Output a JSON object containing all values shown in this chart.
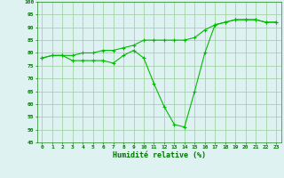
{
  "xlabel": "Humidité relative (%)",
  "ylabel": "",
  "x": [
    0,
    1,
    2,
    3,
    4,
    5,
    6,
    7,
    8,
    9,
    10,
    11,
    12,
    13,
    14,
    15,
    16,
    17,
    18,
    19,
    20,
    21,
    22,
    23
  ],
  "line1": [
    78,
    79,
    79,
    77,
    77,
    77,
    77,
    76,
    79,
    81,
    78,
    68,
    59,
    52,
    51,
    65,
    80,
    91,
    92,
    93,
    93,
    93,
    92,
    92
  ],
  "line2": [
    78,
    79,
    79,
    79,
    80,
    80,
    81,
    81,
    82,
    83,
    85,
    85,
    85,
    85,
    85,
    86,
    89,
    91,
    92,
    93,
    93,
    93,
    92,
    92
  ],
  "line_color": "#00bb00",
  "bg_color": "#dff2f2",
  "grid_color": "#99cc99",
  "tick_color": "#007700",
  "ylim": [
    45,
    100
  ],
  "yticks": [
    45,
    50,
    55,
    60,
    65,
    70,
    75,
    80,
    85,
    90,
    95,
    100
  ],
  "xlim": [
    -0.5,
    23.5
  ],
  "marker": "+"
}
